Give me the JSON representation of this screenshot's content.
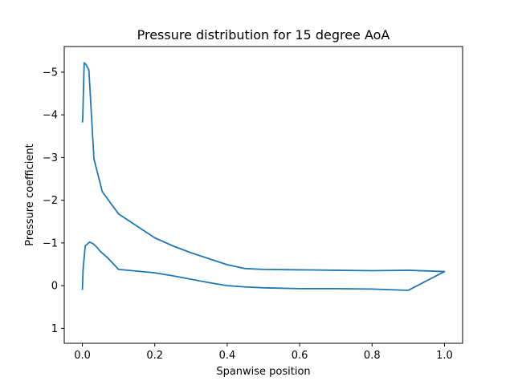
{
  "chart_data": {
    "type": "line",
    "title": "Pressure distribution for 15 degree AoA",
    "xlabel": "Spanwise position",
    "ylabel": "Pressure coefficient",
    "xlim": [
      -0.05,
      1.05
    ],
    "ylim": [
      1.35,
      -5.6
    ],
    "y_inverted": true,
    "grid": false,
    "x_ticks": [
      0.0,
      0.2,
      0.4,
      0.6,
      0.8,
      1.0
    ],
    "x_tick_labels": [
      "0.0",
      "0.2",
      "0.4",
      "0.6",
      "0.8",
      "1.0"
    ],
    "y_ticks": [
      -5,
      -4,
      -3,
      -2,
      -1,
      0,
      1
    ],
    "y_tick_labels": [
      "−5",
      "−4",
      "−3",
      "−2",
      "−1",
      "0",
      "1"
    ],
    "series": [
      {
        "color": "#1f77b4",
        "x": [
          0.0,
          0.001,
          0.005,
          0.01,
          0.018,
          0.032,
          0.055,
          0.1,
          0.2,
          0.25,
          0.3,
          0.35,
          0.4,
          0.45,
          0.5,
          0.6,
          0.7,
          0.8,
          0.9,
          1.0,
          0.9,
          0.8,
          0.7,
          0.6,
          0.5,
          0.45,
          0.4,
          0.35,
          0.3,
          0.25,
          0.2,
          0.1,
          0.07,
          0.05,
          0.04,
          0.03,
          0.02,
          0.008,
          0.002,
          0.0
        ],
        "y": [
          -3.82,
          -3.9,
          -5.22,
          -5.18,
          -5.05,
          -2.97,
          -2.2,
          -1.68,
          -1.12,
          -0.93,
          -0.77,
          -0.63,
          -0.49,
          -0.4,
          -0.38,
          -0.37,
          -0.36,
          -0.35,
          -0.36,
          -0.33,
          0.11,
          0.08,
          0.07,
          0.07,
          0.05,
          0.03,
          0.0,
          -0.07,
          -0.15,
          -0.23,
          -0.3,
          -0.38,
          -0.65,
          -0.8,
          -0.9,
          -0.98,
          -1.02,
          -0.93,
          -0.38,
          0.1
        ]
      }
    ]
  }
}
